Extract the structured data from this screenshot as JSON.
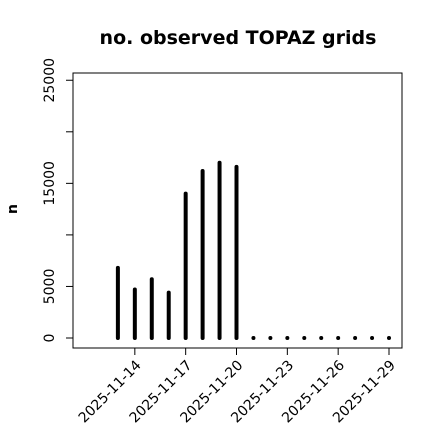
{
  "chart_data": {
    "type": "bar",
    "title": "no. observed TOPAZ grids",
    "xlabel": "",
    "ylabel": "n",
    "x": [
      "2025-11-13",
      "2025-11-14",
      "2025-11-15",
      "2025-11-16",
      "2025-11-17",
      "2025-11-18",
      "2025-11-19",
      "2025-11-20",
      "2025-11-21",
      "2025-11-22",
      "2025-11-23",
      "2025-11-24",
      "2025-11-25",
      "2025-11-26",
      "2025-11-27",
      "2025-11-28",
      "2025-11-29"
    ],
    "values": [
      6800,
      4700,
      5700,
      4400,
      14000,
      16200,
      17000,
      16600,
      0,
      0,
      0,
      0,
      0,
      0,
      0,
      0,
      0
    ],
    "xlim": [
      "2025-11-11",
      "2025-11-30"
    ],
    "ylim": [
      0,
      26000
    ],
    "x_ticks": [
      "2025-11-14",
      "2025-11-17",
      "2025-11-20",
      "2025-11-23",
      "2025-11-26",
      "2025-11-29"
    ],
    "x_tick_colors": [
      "#000000",
      "#000000",
      "#228b22",
      "#000000",
      "#000000",
      "#000000"
    ],
    "y_ticks": [
      0,
      5000,
      10000,
      15000,
      20000,
      25000
    ],
    "y_tick_labels": [
      "0",
      "5000",
      "",
      "15000",
      "",
      "25000"
    ],
    "grid": false,
    "bar_color": "#000000"
  }
}
